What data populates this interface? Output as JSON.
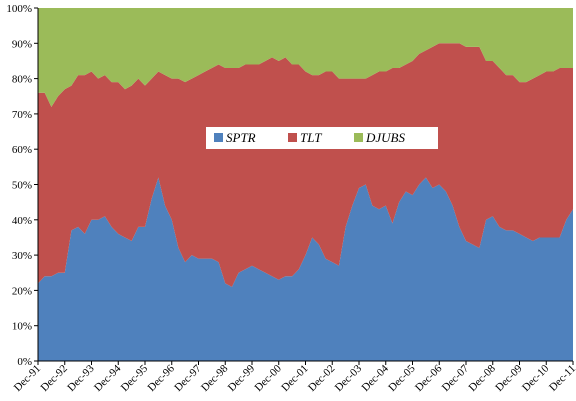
{
  "chart_data": {
    "type": "area",
    "stacked": true,
    "title": "",
    "xlabel": "",
    "ylabel": "",
    "ylim": [
      0,
      100
    ],
    "y_ticks": [
      "0%",
      "10%",
      "20%",
      "30%",
      "40%",
      "50%",
      "60%",
      "70%",
      "80%",
      "90%",
      "100%"
    ],
    "x_ticks": [
      "Dec-91",
      "Dec-92",
      "Dec-93",
      "Dec-94",
      "Dec-95",
      "Dec-96",
      "Dec-97",
      "Dec-98",
      "Dec-99",
      "Dec-00",
      "Dec-01",
      "Dec-02",
      "Dec-03",
      "Dec-04",
      "Dec-05",
      "Dec-06",
      "Dec-07",
      "Dec-08",
      "Dec-09",
      "Dec-10",
      "Dec-11"
    ],
    "x": [
      "1991-12",
      "1992-03",
      "1992-06",
      "1992-09",
      "1992-12",
      "1993-03",
      "1993-06",
      "1993-09",
      "1993-12",
      "1994-03",
      "1994-06",
      "1994-09",
      "1994-12",
      "1995-03",
      "1995-06",
      "1995-09",
      "1995-12",
      "1996-03",
      "1996-06",
      "1996-09",
      "1996-12",
      "1997-03",
      "1997-06",
      "1997-09",
      "1997-12",
      "1998-03",
      "1998-06",
      "1998-09",
      "1998-12",
      "1999-03",
      "1999-06",
      "1999-09",
      "1999-12",
      "2000-03",
      "2000-06",
      "2000-09",
      "2000-12",
      "2001-03",
      "2001-06",
      "2001-09",
      "2001-12",
      "2002-03",
      "2002-06",
      "2002-09",
      "2002-12",
      "2003-03",
      "2003-06",
      "2003-09",
      "2003-12",
      "2004-03",
      "2004-06",
      "2004-09",
      "2004-12",
      "2005-03",
      "2005-06",
      "2005-09",
      "2005-12",
      "2006-03",
      "2006-06",
      "2006-09",
      "2006-12",
      "2007-03",
      "2007-06",
      "2007-09",
      "2007-12",
      "2008-03",
      "2008-06",
      "2008-09",
      "2008-12",
      "2009-03",
      "2009-06",
      "2009-09",
      "2009-12",
      "2010-03",
      "2010-06",
      "2010-09",
      "2010-12",
      "2011-03",
      "2011-06",
      "2011-09",
      "2011-12"
    ],
    "series": [
      {
        "name": "SPTR",
        "color": "#4F81BD",
        "values": [
          22,
          24,
          24,
          25,
          25,
          37,
          38,
          36,
          40,
          40,
          41,
          38,
          36,
          35,
          34,
          38,
          38,
          46,
          52,
          44,
          40,
          32,
          28,
          30,
          29,
          29,
          29,
          28,
          22,
          21,
          25,
          26,
          27,
          26,
          25,
          24,
          23,
          24,
          24,
          26,
          30,
          35,
          33,
          29,
          28,
          27,
          38,
          44,
          49,
          50,
          44,
          43,
          44,
          39,
          45,
          48,
          47,
          50,
          52,
          49,
          50,
          48,
          44,
          38,
          34,
          33,
          32,
          40,
          41,
          38,
          37,
          37,
          36,
          35,
          34,
          35,
          35,
          35,
          35,
          40,
          43
        ]
      },
      {
        "name": "TLT",
        "color": "#C0504D",
        "values": [
          54,
          52,
          48,
          50,
          52,
          41,
          43,
          45,
          42,
          40,
          40,
          41,
          43,
          42,
          44,
          42,
          40,
          34,
          30,
          37,
          40,
          48,
          51,
          50,
          52,
          53,
          54,
          56,
          61,
          62,
          58,
          58,
          57,
          58,
          60,
          62,
          62,
          62,
          60,
          58,
          52,
          46,
          48,
          53,
          54,
          53,
          42,
          36,
          31,
          30,
          37,
          39,
          38,
          44,
          38,
          36,
          38,
          37,
          36,
          40,
          40,
          42,
          46,
          52,
          55,
          56,
          57,
          45,
          44,
          45,
          44,
          44,
          43,
          44,
          46,
          46,
          47,
          47,
          48,
          43,
          40
        ]
      },
      {
        "name": "DJUBS",
        "color": "#9BBB59",
        "values": [
          24,
          24,
          28,
          25,
          23,
          22,
          19,
          19,
          18,
          20,
          19,
          21,
          21,
          23,
          22,
          20,
          22,
          20,
          18,
          19,
          20,
          20,
          21,
          20,
          19,
          18,
          17,
          16,
          17,
          17,
          17,
          16,
          16,
          16,
          15,
          14,
          15,
          14,
          16,
          16,
          18,
          19,
          19,
          18,
          18,
          20,
          20,
          20,
          20,
          20,
          19,
          18,
          18,
          17,
          17,
          16,
          15,
          13,
          12,
          11,
          10,
          10,
          10,
          10,
          11,
          11,
          11,
          15,
          15,
          17,
          19,
          19,
          21,
          21,
          20,
          19,
          18,
          18,
          17,
          17,
          17
        ]
      }
    ],
    "legend": {
      "position": "center",
      "entries": [
        "SPTR",
        "TLT",
        "DJUBS"
      ]
    },
    "grid": false
  }
}
